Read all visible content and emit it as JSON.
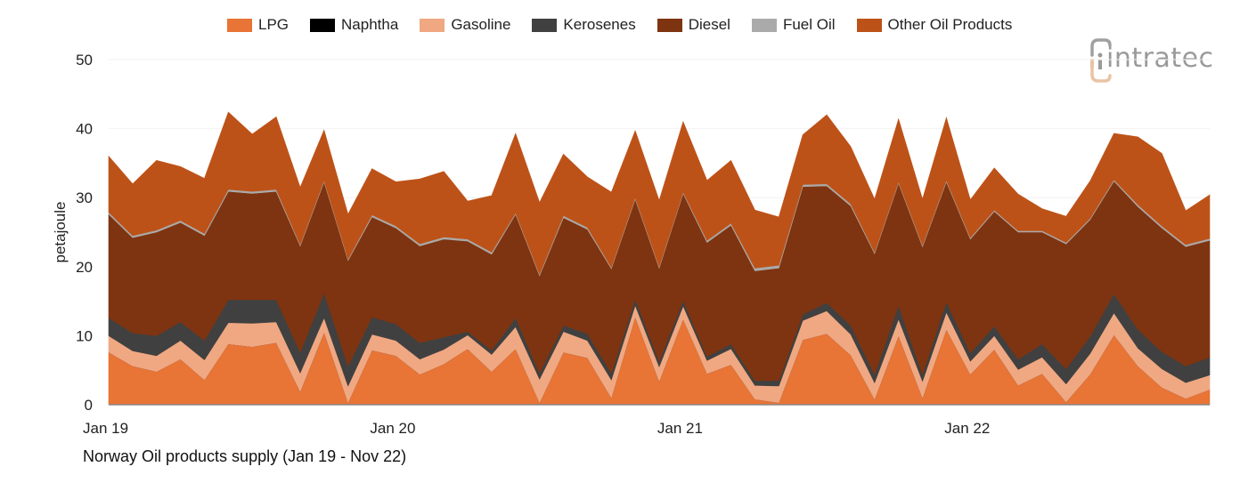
{
  "chart_data": {
    "type": "area",
    "stacked": true,
    "title": "Norway Oil products supply (Jan 19 - Nov 22)",
    "xlabel": "",
    "ylabel": "petajoule",
    "ylim": [
      0,
      50
    ],
    "yticks": [
      0,
      10,
      20,
      30,
      40,
      50
    ],
    "xtick_labels": [
      {
        "label": "Jan 19",
        "index": 0
      },
      {
        "label": "Jan 20",
        "index": 12
      },
      {
        "label": "Jan 21",
        "index": 24
      },
      {
        "label": "Jan 22",
        "index": 36
      }
    ],
    "grid": true,
    "legend_position": "top",
    "x": [
      "Jan 19",
      "Feb 19",
      "Mar 19",
      "Apr 19",
      "May 19",
      "Jun 19",
      "Jul 19",
      "Aug 19",
      "Sep 19",
      "Oct 19",
      "Nov 19",
      "Dec 19",
      "Jan 20",
      "Feb 20",
      "Mar 20",
      "Apr 20",
      "May 20",
      "Jun 20",
      "Jul 20",
      "Aug 20",
      "Sep 20",
      "Oct 20",
      "Nov 20",
      "Dec 20",
      "Jan 21",
      "Feb 21",
      "Mar 21",
      "Apr 21",
      "May 21",
      "Jun 21",
      "Jul 21",
      "Aug 21",
      "Sep 21",
      "Oct 21",
      "Nov 21",
      "Dec 21",
      "Jan 22",
      "Feb 22",
      "Mar 22",
      "Apr 22",
      "May 22",
      "Jun 22",
      "Jul 22",
      "Aug 22",
      "Sep 22",
      "Oct 22",
      "Nov 22"
    ],
    "series": [
      {
        "name": "LPG",
        "color": "#E87435",
        "values": [
          7.6,
          5.6,
          4.8,
          6.6,
          3.6,
          8.8,
          8.4,
          9.0,
          1.9,
          10.5,
          0.3,
          7.9,
          7.1,
          4.4,
          5.9,
          8.1,
          4.8,
          8.1,
          0.3,
          7.6,
          6.8,
          1.0,
          12.7,
          3.4,
          12.4,
          4.5,
          5.8,
          0.8,
          0.3,
          9.4,
          10.3,
          7.2,
          0.8,
          10.0,
          1.0,
          10.9,
          4.4,
          8.0,
          2.8,
          4.5,
          0.4,
          4.4,
          10.1,
          5.6,
          2.5,
          0.9,
          2.2
        ]
      },
      {
        "name": "Naphtha",
        "color": "#000000",
        "values": [
          0,
          0,
          0,
          0,
          0,
          0,
          0,
          0,
          0,
          0,
          0,
          0,
          0,
          0,
          0,
          0,
          0,
          0,
          0,
          0,
          0,
          0,
          0,
          0,
          0,
          0,
          0,
          0,
          0,
          0,
          0,
          0,
          0,
          0,
          0,
          0,
          0,
          0,
          0,
          0,
          0,
          0,
          0,
          0,
          0,
          0,
          0
        ]
      },
      {
        "name": "Gasoline",
        "color": "#F0A882",
        "values": [
          2.4,
          2.2,
          2.3,
          2.7,
          2.9,
          3.1,
          3.4,
          3.0,
          2.7,
          2.1,
          2.4,
          2.3,
          2.2,
          2.2,
          2.1,
          2.0,
          2.5,
          3.2,
          3.4,
          3.0,
          2.5,
          2.6,
          1.7,
          2.1,
          1.9,
          1.9,
          2.3,
          2.0,
          2.4,
          2.8,
          3.3,
          3.0,
          2.4,
          2.4,
          2.4,
          2.5,
          1.9,
          2.0,
          2.3,
          2.4,
          2.6,
          3.0,
          3.2,
          2.6,
          2.7,
          2.3,
          2.1
        ]
      },
      {
        "name": "Kerosenes",
        "color": "#404040",
        "values": [
          2.6,
          2.6,
          2.9,
          2.7,
          2.8,
          3.3,
          3.4,
          3.2,
          3.0,
          3.6,
          2.9,
          2.5,
          2.4,
          2.4,
          1.8,
          0.5,
          0.6,
          1.3,
          0.9,
          0.9,
          1.0,
          1.0,
          0.9,
          0.8,
          0.8,
          0.6,
          0.7,
          0.7,
          0.8,
          0.9,
          1.2,
          1.3,
          1.2,
          2.0,
          1.0,
          1.5,
          1.2,
          1.4,
          1.5,
          1.9,
          2.2,
          2.5,
          2.8,
          2.7,
          2.5,
          2.4,
          2.6
        ]
      },
      {
        "name": "Diesel",
        "color": "#7E3410",
        "values": [
          15.0,
          13.8,
          15.0,
          14.4,
          15.2,
          15.7,
          15.4,
          15.7,
          15.4,
          16.1,
          15.3,
          14.5,
          13.9,
          14.0,
          14.2,
          13.1,
          13.9,
          15.0,
          14.1,
          15.6,
          15.1,
          15.1,
          14.5,
          13.5,
          15.5,
          16.5,
          17.2,
          15.9,
          16.3,
          18.5,
          16.9,
          17.3,
          17.5,
          17.7,
          18.5,
          17.4,
          16.5,
          16.6,
          18.4,
          16.2,
          18.1,
          16.9,
          16.3,
          17.8,
          17.9,
          17.3,
          16.9
        ]
      },
      {
        "name": "Fuel Oil",
        "color": "#AAAAAA",
        "values": [
          0.3,
          0.3,
          0.3,
          0.3,
          0.3,
          0.3,
          0.3,
          0.3,
          0.2,
          0.2,
          0.2,
          0.3,
          0.3,
          0.3,
          0.3,
          0.3,
          0.3,
          0.2,
          0.2,
          0.3,
          0.3,
          0.2,
          0.2,
          0.2,
          0.2,
          0.3,
          0.3,
          0.4,
          0.4,
          0.3,
          0.3,
          0.3,
          0.2,
          0.2,
          0.2,
          0.2,
          0.2,
          0.2,
          0.2,
          0.2,
          0.2,
          0.2,
          0.2,
          0.3,
          0.3,
          0.3,
          0.3
        ]
      },
      {
        "name": "Other Oil Products",
        "color": "#BD5218",
        "values": [
          8.1,
          7.5,
          10.1,
          7.8,
          8.0,
          11.2,
          8.3,
          10.5,
          8.3,
          7.3,
          6.5,
          6.7,
          6.4,
          9.4,
          9.5,
          5.5,
          8.2,
          11.5,
          10.4,
          8.9,
          7.3,
          10.9,
          9.7,
          9.6,
          10.2,
          8.7,
          9.1,
          8.4,
          7.0,
          7.2,
          10.0,
          8.3,
          7.7,
          9.1,
          6.7,
          9.1,
          5.5,
          6.1,
          5.3,
          3.2,
          3.8,
          5.4,
          6.7,
          9.8,
          10.5,
          4.9,
          6.3
        ]
      }
    ]
  },
  "legend": {
    "items": [
      {
        "label": "LPG",
        "color": "#E87435"
      },
      {
        "label": "Naphtha",
        "color": "#000000"
      },
      {
        "label": "Gasoline",
        "color": "#F0A882"
      },
      {
        "label": "Kerosenes",
        "color": "#404040"
      },
      {
        "label": "Diesel",
        "color": "#7E3410"
      },
      {
        "label": "Fuel Oil",
        "color": "#AAAAAA"
      },
      {
        "label": "Other Oil Products",
        "color": "#BD5218"
      }
    ]
  },
  "logo": {
    "text": "intratec",
    "icon": "intratec-logo-icon"
  },
  "caption": "Norway Oil products supply (Jan 19 - Nov 22)"
}
